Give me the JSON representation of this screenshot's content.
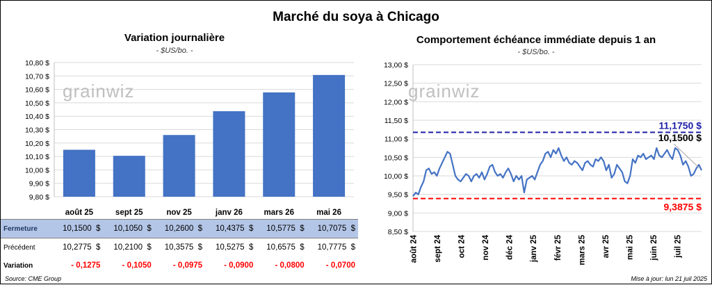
{
  "title": "Marché du soya à Chicago",
  "source": "Source: CME Group",
  "updated": "Mise à jour: lun 21 juil 2025",
  "watermark": "grainwiz",
  "colors": {
    "bar": "#4472c4",
    "line": "#4472c4",
    "high": "#1f1fa8",
    "low": "#ff0000",
    "grid": "#d9d9d9",
    "row_highlight": "#b4c6e7"
  },
  "chart_data": [
    {
      "type": "bar",
      "title": "Variation journalière",
      "subtitle": "- $US/bo. -",
      "categories": [
        "août 25",
        "sept 25",
        "nov 25",
        "janv 26",
        "mars 26",
        "mai 26"
      ],
      "values": [
        10.15,
        10.105,
        10.26,
        10.4375,
        10.5775,
        10.7075
      ],
      "ylim": [
        9.8,
        10.8
      ],
      "yticks": [
        "9,80 $",
        "9,90 $",
        "10,00 $",
        "10,10 $",
        "10,20 $",
        "10,30 $",
        "10,40 $",
        "10,50 $",
        "10,60 $",
        "10,70 $",
        "10,80 $"
      ],
      "grid": true
    },
    {
      "type": "line",
      "title": "Comportement échéance immédiate depuis 1 an",
      "subtitle": "- $US/bo. -",
      "ylim": [
        8.5,
        13.0
      ],
      "yticks": [
        "8,50 $",
        "9,00 $",
        "9,50 $",
        "10,00 $",
        "10,50 $",
        "11,00 $",
        "11,50 $",
        "12,00 $",
        "12,50 $",
        "13,00 $"
      ],
      "xticks": [
        "août 24",
        "sept 24",
        "oct 24",
        "nov 24",
        "déc 24",
        "janv 25",
        "févr 25",
        "mars 25",
        "avr 25",
        "mai 25",
        "juin 25",
        "juil 25"
      ],
      "series": [
        {
          "values": [
            9.45,
            9.55,
            9.5,
            9.7,
            9.85,
            10.15,
            10.2,
            10.05,
            10.1,
            10.0,
            10.2,
            10.35,
            10.5,
            10.65,
            10.6,
            10.3,
            10.0,
            9.9,
            9.85,
            9.95,
            10.05,
            10.0,
            9.85,
            10.0,
            10.05,
            9.95,
            10.1,
            9.9,
            10.05,
            10.25,
            10.3,
            10.1,
            10.0,
            10.05,
            9.95,
            10.1,
            10.2,
            10.05,
            9.85,
            10.0,
            9.9,
            10.0,
            9.55,
            9.9,
            9.95,
            10.0,
            9.9,
            10.1,
            10.3,
            10.4,
            10.6,
            10.65,
            10.5,
            10.7,
            10.6,
            10.75,
            10.55,
            10.4,
            10.5,
            10.35,
            10.3,
            10.4,
            10.35,
            10.25,
            10.15,
            10.35,
            10.4,
            10.3,
            10.25,
            10.45,
            10.4,
            10.5,
            10.4,
            10.15,
            10.3,
            9.95,
            10.05,
            10.3,
            10.2,
            10.1,
            9.85,
            9.8,
            10.0,
            10.45,
            10.35,
            10.55,
            10.5,
            10.6,
            10.45,
            10.5,
            10.55,
            10.45,
            10.75,
            10.55,
            10.5,
            10.6,
            10.7,
            10.55,
            10.45,
            10.75,
            10.7,
            10.55,
            10.3,
            10.4,
            10.25,
            10.0,
            10.05,
            10.2,
            10.3,
            10.15
          ]
        }
      ],
      "annotations": [
        {
          "label": "11,1750 $",
          "value": 11.175,
          "kind": "high"
        },
        {
          "label": "10,1500 $",
          "value": 10.15,
          "kind": "last"
        },
        {
          "label": "9,3875 $",
          "value": 9.3875,
          "kind": "low"
        }
      ]
    }
  ],
  "table": {
    "rows": [
      {
        "label": "Fermeture",
        "values": [
          "10,1500",
          "10,1050",
          "10,2600",
          "10,4375",
          "10,5775",
          "10,7075"
        ],
        "unit": "$"
      },
      {
        "label": "Précédent",
        "values": [
          "10,2775",
          "10,2100",
          "10,3575",
          "10,5275",
          "10,6575",
          "10,7775"
        ],
        "unit": "$"
      },
      {
        "label": "Variation",
        "values": [
          "- 0,1275",
          "- 0,1050",
          "- 0,0975",
          "- 0,0900",
          "- 0,0800",
          "- 0,0700"
        ],
        "unit": ""
      }
    ]
  }
}
